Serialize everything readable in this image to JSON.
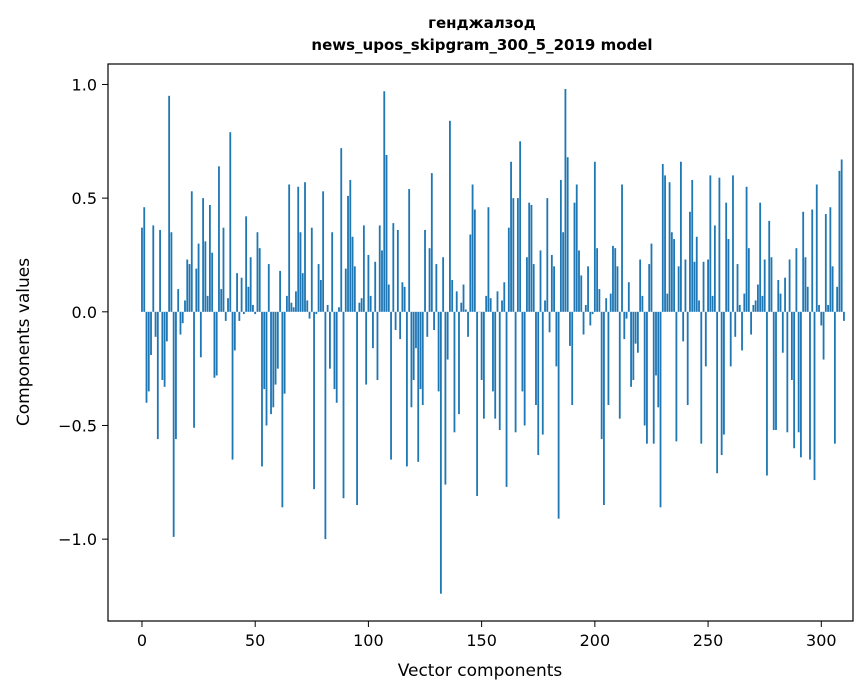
{
  "chart_data": {
    "type": "bar",
    "title": "генджалзод",
    "subtitle": "news_upos_skipgram_300_5_2019 model",
    "xlabel": "Vector components",
    "ylabel": "Components values",
    "xlim": [
      -15,
      314
    ],
    "ylim": [
      -1.36,
      1.09
    ],
    "x_ticks": [
      0,
      50,
      100,
      150,
      200,
      250,
      300
    ],
    "x_tick_labels": [
      "0",
      "50",
      "100",
      "150",
      "200",
      "250",
      "300"
    ],
    "y_ticks": [
      -1.0,
      -0.5,
      0.0,
      0.5,
      1.0
    ],
    "y_tick_labels": [
      "−1.0",
      "−0.5",
      "0.0",
      "0.5",
      "1.0"
    ],
    "bar_color": "#1f77b4",
    "series": [
      {
        "name": "components",
        "values": [
          0.37,
          0.46,
          -0.4,
          -0.35,
          -0.19,
          0.38,
          -0.11,
          -0.56,
          0.36,
          -0.3,
          -0.33,
          -0.13,
          0.95,
          0.35,
          -0.99,
          -0.56,
          0.1,
          -0.1,
          -0.05,
          0.05,
          0.23,
          0.21,
          0.53,
          -0.51,
          0.19,
          0.3,
          -0.2,
          0.5,
          0.31,
          0.07,
          0.47,
          0.26,
          -0.29,
          -0.28,
          0.64,
          0.1,
          0.37,
          -0.04,
          0.06,
          0.79,
          -0.65,
          -0.17,
          0.17,
          -0.04,
          0.15,
          -0.01,
          0.42,
          0.11,
          0.24,
          0.03,
          -0.01,
          0.35,
          0.28,
          -0.68,
          -0.34,
          -0.5,
          0.21,
          -0.45,
          -0.42,
          -0.32,
          -0.25,
          0.18,
          -0.86,
          -0.36,
          0.07,
          0.56,
          0.04,
          0.02,
          0.09,
          0.55,
          0.35,
          0.17,
          0.57,
          0.05,
          -0.03,
          0.37,
          -0.78,
          -0.01,
          0.21,
          0.14,
          0.53,
          -1.0,
          0.03,
          -0.25,
          0.35,
          -0.34,
          -0.4,
          0.02,
          0.72,
          -0.82,
          0.19,
          0.51,
          0.58,
          0.33,
          0.2,
          -0.85,
          0.04,
          0.06,
          0.38,
          -0.32,
          0.25,
          0.07,
          -0.16,
          0.22,
          -0.3,
          0.38,
          0.27,
          0.97,
          0.69,
          0.12,
          -0.65,
          0.39,
          -0.08,
          0.36,
          -0.12,
          0.13,
          0.11,
          -0.68,
          0.54,
          -0.42,
          -0.3,
          -0.16,
          -0.66,
          -0.34,
          -0.41,
          0.36,
          -0.11,
          0.28,
          0.61,
          -0.08,
          0.21,
          -0.35,
          -1.24,
          0.24,
          -0.76,
          -0.21,
          0.84,
          0.14,
          -0.53,
          0.09,
          -0.45,
          0.04,
          0.12,
          0.01,
          -0.11,
          0.34,
          0.56,
          0.45,
          -0.81,
          0.0,
          -0.3,
          -0.47,
          0.07,
          0.46,
          0.06,
          -0.35,
          -0.47,
          0.09,
          -0.52,
          0.05,
          0.13,
          -0.77,
          0.37,
          0.66,
          0.5,
          -0.53,
          0.5,
          0.75,
          -0.35,
          -0.5,
          0.24,
          0.48,
          0.47,
          0.21,
          -0.41,
          -0.63,
          0.27,
          -0.54,
          0.05,
          0.5,
          -0.09,
          0.25,
          0.2,
          -0.24,
          -0.91,
          0.58,
          0.35,
          0.98,
          0.68,
          -0.15,
          -0.41,
          0.48,
          0.56,
          0.27,
          0.16,
          -0.1,
          0.03,
          0.2,
          -0.06,
          -0.01,
          0.66,
          0.28,
          0.1,
          -0.56,
          -0.85,
          0.06,
          -0.41,
          0.08,
          0.29,
          0.28,
          0.2,
          -0.47,
          0.56,
          -0.12,
          -0.03,
          0.13,
          -0.33,
          -0.3,
          -0.14,
          -0.18,
          0.23,
          0.07,
          -0.5,
          -0.58,
          0.21,
          0.3,
          -0.58,
          -0.28,
          -0.42,
          -0.86,
          0.65,
          0.6,
          0.08,
          0.57,
          0.35,
          0.32,
          -0.57,
          0.2,
          0.66,
          -0.13,
          0.23,
          -0.41,
          0.44,
          0.58,
          0.22,
          0.33,
          0.05,
          -0.58,
          0.22,
          -0.24,
          0.23,
          0.6,
          0.07,
          0.38,
          -0.71,
          0.59,
          -0.63,
          -0.54,
          0.48,
          0.32,
          -0.24,
          0.6,
          -0.11,
          0.21,
          0.03,
          -0.17,
          0.08,
          0.55,
          0.28,
          -0.1,
          0.03,
          0.05,
          0.12,
          0.48,
          0.07,
          0.23,
          -0.72,
          0.4,
          0.24,
          -0.52,
          -0.52,
          0.14,
          0.08,
          -0.18,
          0.15,
          -0.53,
          0.23,
          -0.3,
          -0.6,
          0.28,
          -0.53,
          -0.64,
          0.44,
          0.24,
          0.11,
          -0.65,
          0.45,
          -0.74,
          0.56,
          0.03,
          -0.06,
          -0.21,
          0.43,
          0.03,
          0.46,
          0.2,
          -0.58,
          0.11,
          0.62,
          0.67,
          -0.04
        ]
      }
    ]
  }
}
